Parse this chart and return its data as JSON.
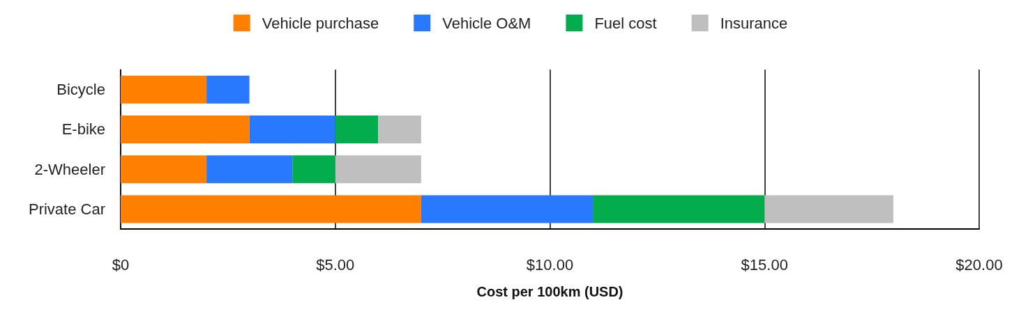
{
  "chart_data": {
    "type": "bar",
    "orientation": "horizontal",
    "stacked": true,
    "xlabel": "Cost per 100km (USD)",
    "categories": [
      "Bicycle",
      "E-bike",
      "2-Wheeler",
      "Private Car"
    ],
    "series": [
      {
        "name": "Vehicle purchase",
        "color": "#ff8000",
        "values": [
          2,
          3,
          2,
          7
        ]
      },
      {
        "name": "Vehicle O&M",
        "color": "#2979ff",
        "values": [
          1,
          2,
          2,
          4
        ]
      },
      {
        "name": "Fuel cost",
        "color": "#03ad4d",
        "values": [
          0,
          1,
          1,
          4
        ]
      },
      {
        "name": "Insurance",
        "color": "#bfbfbf",
        "values": [
          0,
          1,
          2,
          3
        ]
      }
    ],
    "xlim": [
      0,
      20
    ],
    "xticks": [
      {
        "value": 0,
        "label": "$0"
      },
      {
        "value": 5,
        "label": "$5.00"
      },
      {
        "value": 10,
        "label": "$10.00"
      },
      {
        "value": 15,
        "label": "$15.00"
      },
      {
        "value": 20,
        "label": "$20.00"
      }
    ],
    "grid": "x",
    "legend": "top"
  }
}
